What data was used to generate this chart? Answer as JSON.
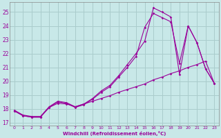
{
  "background_color": "#c8e8e8",
  "grid_color": "#aacccc",
  "line_color": "#990099",
  "xlim": [
    -0.5,
    23.5
  ],
  "ylim": [
    16.8,
    25.7
  ],
  "yticks": [
    17,
    18,
    19,
    20,
    21,
    22,
    23,
    24,
    25
  ],
  "xticks": [
    0,
    1,
    2,
    3,
    4,
    5,
    6,
    7,
    8,
    9,
    10,
    11,
    12,
    13,
    14,
    15,
    16,
    17,
    18,
    19,
    20,
    21,
    22,
    23
  ],
  "xlabel": "Windchill (Refroidissement éolien,°C)",
  "line1_x": [
    0,
    1,
    2,
    3,
    4,
    5,
    6,
    7,
    8,
    9,
    10,
    11,
    12,
    13,
    14,
    15,
    16,
    17,
    18,
    19,
    20,
    21,
    22,
    23
  ],
  "line1_y": [
    17.9,
    17.55,
    17.45,
    17.45,
    18.15,
    18.55,
    18.45,
    18.15,
    18.35,
    18.75,
    19.3,
    19.7,
    20.4,
    21.2,
    22.0,
    22.9,
    25.3,
    25.0,
    24.65,
    20.5,
    24.0,
    22.8,
    20.9,
    19.85
  ],
  "line2_x": [
    0,
    1,
    2,
    3,
    4,
    5,
    6,
    7,
    8,
    9,
    10,
    11,
    12,
    13,
    14,
    15,
    16,
    17,
    18,
    19,
    20,
    21,
    22,
    23
  ],
  "line2_y": [
    17.85,
    17.5,
    17.4,
    17.4,
    18.1,
    18.5,
    18.4,
    18.1,
    18.3,
    18.7,
    19.2,
    19.6,
    20.3,
    21.0,
    21.8,
    23.9,
    24.9,
    24.6,
    24.3,
    21.3,
    24.0,
    22.8,
    20.9,
    19.85
  ],
  "line3_x": [
    0,
    1,
    2,
    3,
    4,
    5,
    6,
    7,
    8,
    9,
    10,
    11,
    12,
    13,
    14,
    15,
    16,
    17,
    18,
    19,
    20,
    21,
    22,
    23
  ],
  "line3_y": [
    17.85,
    17.5,
    17.4,
    17.4,
    18.1,
    18.4,
    18.35,
    18.15,
    18.35,
    18.55,
    18.75,
    18.95,
    19.2,
    19.4,
    19.6,
    19.8,
    20.1,
    20.3,
    20.55,
    20.75,
    21.0,
    21.2,
    21.45,
    19.85
  ]
}
